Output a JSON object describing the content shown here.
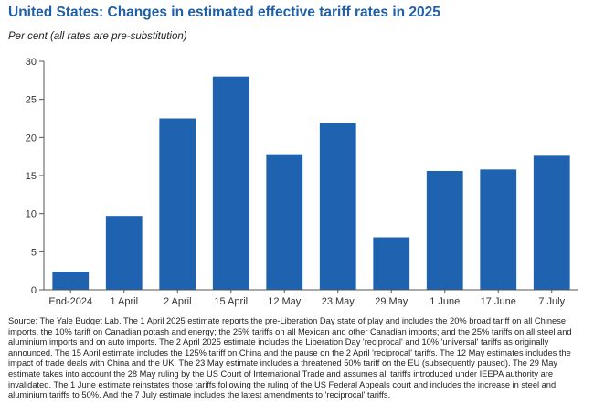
{
  "title": "United States: Changes in estimated effective tariff rates in 2025",
  "subtitle": "Per cent (all rates are pre-substitution)",
  "source": "Source: The Yale Budget Lab. The 1 April 2025 estimate reports the pre-Liberation Day state of play and includes the 20% broad tariff on all Chinese imports, the 10% tariff on Canadian potash and energy; the 25% tariffs on all Mexican and other Canadian imports; and the 25% tariffs on all steel and aluminium imports and on auto imports. The 2 April 2025 estimate includes the Liberation Day 'reciprocal' and 10% 'universal' tariffs as originally announced. The 15 April estimate includes the 125% tariff on China and the pause on the 2 April 'reciprocal' tariffs. The 12 May estimates includes the impact of trade deals with China and the UK. The 23 May estimate includes a threatened 50% tariff on the EU (subsequently paused). The 29 May estimate takes into account the 28 May ruling by the US Court of International Trade and assumes all tariffs introduced under IEEPA authority are invalidated. The 1 June estimate reinstates those tariffs following the ruling of the US Federal Appeals court and includes the increase in steel and aluminium tariffs to 50%. And the 7 July estimate includes the latest amendments to 'reciprocal' tariffs.",
  "colors": {
    "bar": "#1f63b0",
    "axis": "#555555",
    "text": "#333333",
    "title": "#1f5fa8"
  },
  "chart_data": {
    "type": "bar",
    "title": "United States: Changes in estimated effective tariff rates in 2025",
    "ylabel": "Per cent",
    "xlabel": "",
    "categories": [
      "End-2024",
      "1 April",
      "2 April",
      "15 April",
      "12 May",
      "23 May",
      "29 May",
      "1 June",
      "17 June",
      "7 July"
    ],
    "values": [
      2.4,
      9.7,
      22.5,
      28.0,
      17.8,
      21.9,
      6.9,
      15.6,
      15.8,
      17.6
    ],
    "ylim": [
      0,
      30
    ],
    "yticks": [
      0,
      5,
      10,
      15,
      20,
      25,
      30
    ],
    "grid": false,
    "legend": "none"
  }
}
